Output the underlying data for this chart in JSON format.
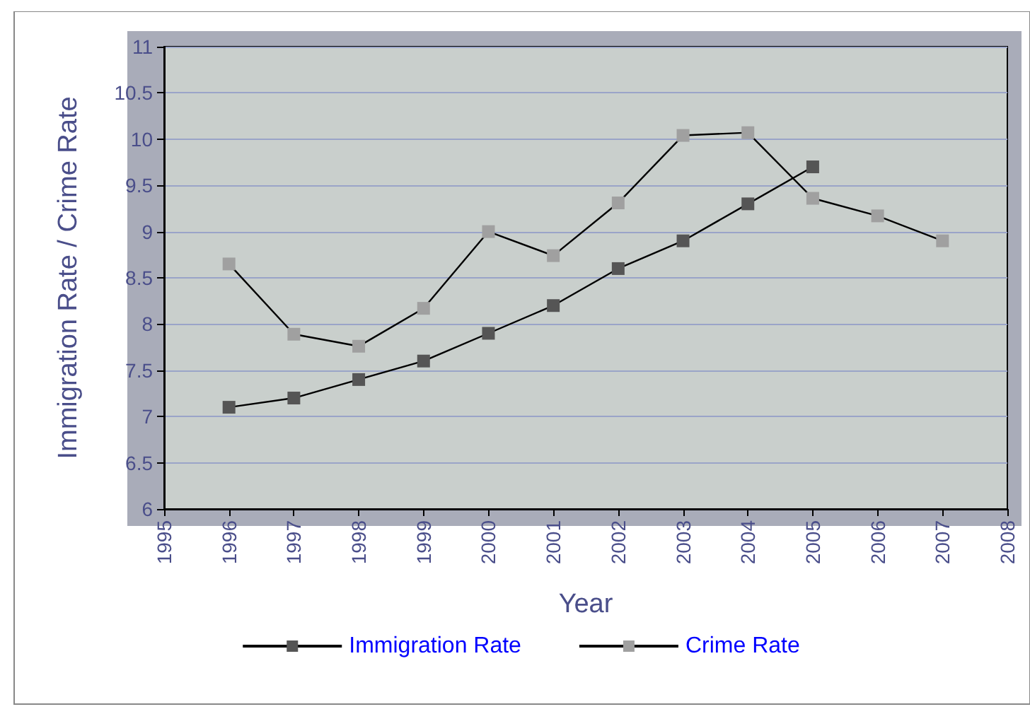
{
  "chart_data": {
    "type": "line",
    "xlabel": "Year",
    "ylabel": "Immigration Rate / Crime Rate",
    "xlim": [
      1995,
      2008
    ],
    "xticks": [
      1995,
      1996,
      1997,
      1998,
      1999,
      2000,
      2001,
      2002,
      2003,
      2004,
      2005,
      2006,
      2007,
      2008
    ],
    "ylim": [
      6,
      11
    ],
    "yticks": [
      6,
      6.5,
      7,
      7.5,
      8,
      8.5,
      9,
      9.5,
      10,
      10.5,
      11
    ],
    "grid": "y",
    "legend": "bottom",
    "marker": "square",
    "line_style": "solid",
    "series": [
      {
        "name": "Immigration Rate",
        "color": "#555555",
        "x": [
          1996,
          1997,
          1998,
          1999,
          2000,
          2001,
          2002,
          2003,
          2004,
          2005
        ],
        "values": [
          7.1,
          7.2,
          7.4,
          7.6,
          7.9,
          8.2,
          8.6,
          8.9,
          9.3,
          9.7
        ]
      },
      {
        "name": "Crime Rate",
        "color": "#a0a0a0",
        "x": [
          1996,
          1997,
          1998,
          1999,
          2000,
          2001,
          2002,
          2003,
          2004,
          2005,
          2006,
          2007
        ],
        "values": [
          8.65,
          7.89,
          7.76,
          8.17,
          9.0,
          8.74,
          9.31,
          10.04,
          10.07,
          9.36,
          9.17,
          8.9
        ]
      }
    ]
  }
}
